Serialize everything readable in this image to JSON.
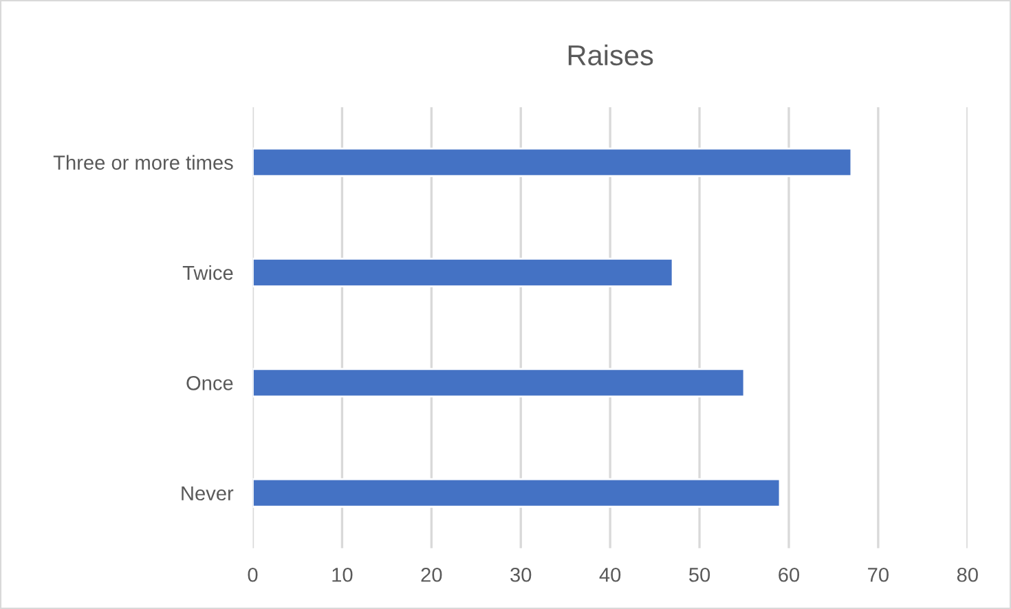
{
  "chart_data": {
    "type": "bar",
    "orientation": "horizontal",
    "title": "Raises",
    "categories": [
      "Three or more times",
      "Twice",
      "Once",
      "Never"
    ],
    "values": [
      67,
      47,
      55,
      59
    ],
    "color": "#4472c4",
    "xlim": [
      0,
      80
    ],
    "xticks": [
      0,
      10,
      20,
      30,
      40,
      50,
      60,
      70,
      80
    ],
    "grid": "x",
    "legend": false
  }
}
